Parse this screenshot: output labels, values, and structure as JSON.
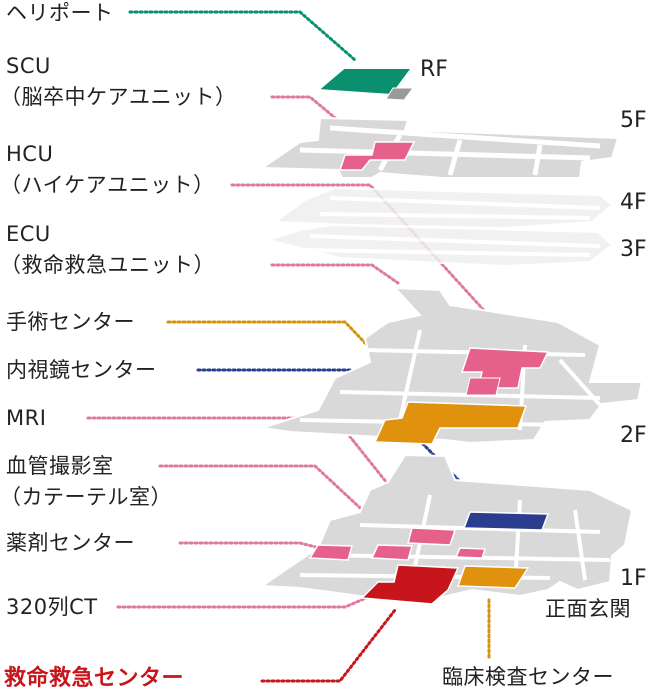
{
  "labels": {
    "heliport": "ヘリポート",
    "scu_1": "SCU",
    "scu_2": "（脳卒中ケアユニット）",
    "hcu_1": "HCU",
    "hcu_2": "（ハイケアユニット）",
    "ecu_1": "ECU",
    "ecu_2": "（救命救急ユニット）",
    "surgery": "手術センター",
    "endoscopy": "内視鏡センター",
    "mri": "MRI",
    "angio_1": "血管撮影室",
    "angio_2": "（カテーテル室）",
    "pharmacy": "薬剤センター",
    "ct": "320列CT",
    "emergency": "救命救急センター",
    "lab": "臨床検査センター",
    "entrance": "正面玄関"
  },
  "floors": {
    "rf": "RF",
    "f5": "5F",
    "f4": "4F",
    "f3": "3F",
    "f2": "2F",
    "f1": "1F"
  },
  "colors": {
    "teal": "#0a8f6f",
    "pink": "#e5608a",
    "orange": "#e0920f",
    "navy": "#2a3d8f",
    "red": "#c8151b",
    "floor_gray": "#d9d9d9",
    "floor_light": "#efefef"
  }
}
